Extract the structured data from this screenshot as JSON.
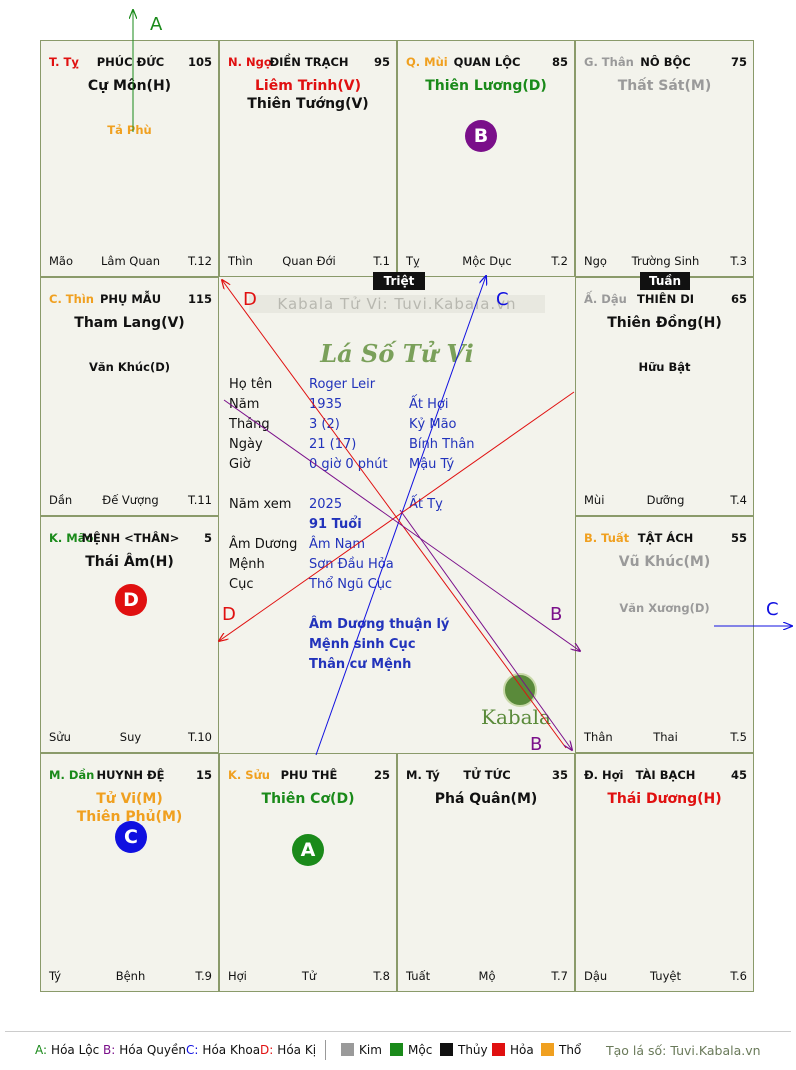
{
  "palaces": [
    {
      "id": "ty_top",
      "branch": "T. Tỵ",
      "branch_color": "#e01010",
      "name": "PHÚC ĐỨC",
      "score": "105",
      "stars": [
        {
          "text": "Cự Môn(H)",
          "color": "#111111"
        }
      ],
      "minor": [
        {
          "text": "Tả Phù",
          "color": "#f0a020"
        }
      ],
      "foot": {
        "left": "Mão",
        "center": "Lâm Quan",
        "right": "T.12"
      }
    },
    {
      "id": "ngo",
      "branch": "N. Ngọ",
      "branch_color": "#e01010",
      "name": "ĐIỀN TRẠCH",
      "score": "95",
      "stars": [
        {
          "text": "Liêm Trinh(V)",
          "color": "#e01010"
        },
        {
          "text": "Thiên Tướng(V)",
          "color": "#111111"
        }
      ],
      "minor": [],
      "foot": {
        "left": "Thìn",
        "center": "Quan Đới",
        "right": "T.1"
      }
    },
    {
      "id": "mui",
      "branch": "Q. Mùi",
      "branch_color": "#f0a020",
      "name": "QUAN LỘC",
      "score": "85",
      "stars": [
        {
          "text": "Thiên Lương(D)",
          "color": "#1a8a1a"
        }
      ],
      "minor": [],
      "foot": {
        "left": "Tỵ",
        "center": "Mộc Dục",
        "right": "T.2"
      }
    },
    {
      "id": "than",
      "branch": "G. Thân",
      "branch_color": "#9a9a9a",
      "name": "NÔ BỘC",
      "score": "75",
      "stars": [
        {
          "text": "Thất Sát(M)",
          "color": "#9a9a9a"
        }
      ],
      "minor": [],
      "foot": {
        "left": "Ngọ",
        "center": "Trường Sinh",
        "right": "T.3"
      }
    },
    {
      "id": "thin",
      "branch": "C. Thìn",
      "branch_color": "#f0a020",
      "name": "PHỤ MẪU",
      "score": "115",
      "stars": [
        {
          "text": "Tham Lang(V)",
          "color": "#111111"
        }
      ],
      "minor": [
        {
          "text": "Văn Khúc(D)",
          "color": "#111111"
        }
      ],
      "foot": {
        "left": "Dần",
        "center": "Đế Vượng",
        "right": "T.11"
      }
    },
    {
      "id": "dau",
      "branch": "Ấ. Dậu",
      "branch_color": "#9a9a9a",
      "name": "THIÊN DI",
      "score": "65",
      "stars": [
        {
          "text": "Thiên Đồng(H)",
          "color": "#111111"
        }
      ],
      "minor": [
        {
          "text": "Hữu Bật",
          "color": "#111111"
        }
      ],
      "foot": {
        "left": "Mùi",
        "center": "Dưỡng",
        "right": "T.4"
      }
    },
    {
      "id": "mao",
      "branch": "K. Mão",
      "branch_color": "#1a8a1a",
      "name": "MỆNH <THÂN>",
      "score": "5",
      "stars": [
        {
          "text": "Thái Âm(H)",
          "color": "#111111"
        }
      ],
      "minor": [],
      "foot": {
        "left": "Sửu",
        "center": "Suy",
        "right": "T.10"
      }
    },
    {
      "id": "tuat",
      "branch": "B. Tuất",
      "branch_color": "#f0a020",
      "name": "TẬT ÁCH",
      "score": "55",
      "stars": [
        {
          "text": "Vũ Khúc(M)",
          "color": "#9a9a9a"
        }
      ],
      "minor": [
        {
          "text": "Văn Xương(D)",
          "color": "#9a9a9a"
        }
      ],
      "foot": {
        "left": "Thân",
        "center": "Thai",
        "right": "T.5"
      }
    },
    {
      "id": "dan",
      "branch": "M. Dần",
      "branch_color": "#1a8a1a",
      "name": "HUYNH ĐỆ",
      "score": "15",
      "stars": [
        {
          "text": "Tử Vi(M)",
          "color": "#f0a020"
        },
        {
          "text": "Thiên Phủ(M)",
          "color": "#f0a020"
        }
      ],
      "minor": [],
      "foot": {
        "left": "Tý",
        "center": "Bệnh",
        "right": "T.9"
      }
    },
    {
      "id": "suu",
      "branch": "K. Sửu",
      "branch_color": "#f0a020",
      "name": "PHU THÊ",
      "score": "25",
      "stars": [
        {
          "text": "Thiên Cơ(D)",
          "color": "#1a8a1a"
        }
      ],
      "minor": [],
      "foot": {
        "left": "Hợi",
        "center": "Tử",
        "right": "T.8"
      }
    },
    {
      "id": "ty_bot",
      "branch": "M. Tý",
      "branch_color": "#111111",
      "name": "TỬ TỨC",
      "score": "35",
      "stars": [
        {
          "text": "Phá Quân(M)",
          "color": "#111111"
        }
      ],
      "minor": [],
      "foot": {
        "left": "Tuất",
        "center": "Mộ",
        "right": "T.7"
      }
    },
    {
      "id": "hoi",
      "branch": "Đ. Hợi",
      "branch_color": "#111111",
      "name": "TÀI BẠCH",
      "score": "45",
      "stars": [
        {
          "text": "Thái Dương(H)",
          "color": "#e01010"
        }
      ],
      "minor": [],
      "foot": {
        "left": "Dậu",
        "center": "Tuyệt",
        "right": "T.6"
      }
    }
  ],
  "badges": [
    {
      "letter": "B",
      "color": "#7a0f8a",
      "palace": "mui"
    },
    {
      "letter": "D",
      "color": "#e01010",
      "palace": "mao"
    },
    {
      "letter": "C",
      "color": "#1010e0",
      "palace": "dan"
    },
    {
      "letter": "A",
      "color": "#1a8a1a",
      "palace": "suu"
    }
  ],
  "tags": {
    "triet": "Triệt",
    "tuan": "Tuần"
  },
  "center": {
    "watermark": "Kabala Tử Vi: Tuvi.Kabala.vn",
    "title": "Lá Số Tử Vi",
    "rows": [
      {
        "k": "Họ tên",
        "v1": "Roger Leir",
        "v2": ""
      },
      {
        "k": "Năm",
        "v1": "1935",
        "v2": "Ất Hợi"
      },
      {
        "k": "Tháng",
        "v1": "3  (2)",
        "v2": "Kỷ Mão"
      },
      {
        "k": "Ngày",
        "v1": "21  (17)",
        "v2": "Bính Thân"
      },
      {
        "k": "Giờ",
        "v1": "0 giờ 0 phút",
        "v2": "Mậu Tý"
      },
      {
        "k": "Năm xem",
        "v1": "2025",
        "v2": "Ất Tỵ"
      },
      {
        "k": "",
        "v1": "91 Tuổi",
        "v2": ""
      },
      {
        "k": "Âm Dương",
        "v1": "Âm Nam",
        "v2": ""
      },
      {
        "k": "Mệnh",
        "v1": "Sơn Đầu Hỏa",
        "v2": ""
      },
      {
        "k": "Cục",
        "v1": "Thổ Ngũ Cục",
        "v2": ""
      }
    ],
    "notes": [
      "Âm Dương thuận lý",
      "Mệnh sinh Cục",
      "Thân cư Mệnh"
    ],
    "logo_text": "Kabala"
  },
  "arrow_labels": {
    "A": "A",
    "B": "B",
    "C": "C",
    "D": "D"
  },
  "legend": {
    "transforms": [
      {
        "key": "A:",
        "label": "Hóa Lộc",
        "color": "#1a8a1a"
      },
      {
        "key": "B:",
        "label": "Hóa Quyền",
        "color": "#7a0f8a"
      },
      {
        "key": "C:",
        "label": "Hóa Khoa",
        "color": "#1010e0"
      },
      {
        "key": "D:",
        "label": "Hóa Kị",
        "color": "#e01010"
      }
    ],
    "elements": [
      {
        "label": "Kim",
        "color": "#9a9a9a"
      },
      {
        "label": "Mộc",
        "color": "#1a8a1a"
      },
      {
        "label": "Thủy",
        "color": "#111111"
      },
      {
        "label": "Hỏa",
        "color": "#e01010"
      },
      {
        "label": "Thổ",
        "color": "#f0a020"
      }
    ],
    "credit": "Tạo lá số: Tuvi.Kabala.vn"
  }
}
